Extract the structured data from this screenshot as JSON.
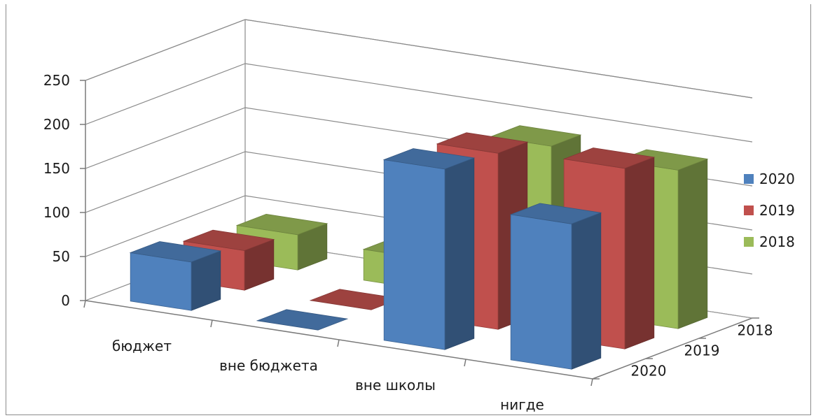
{
  "chart_data": {
    "type": "bar",
    "subtype": "3d-clustered-column",
    "title": "",
    "categories": [
      "бюджет",
      "вне бюджета",
      "вне школы",
      "нигде"
    ],
    "series": [
      {
        "name": "2020",
        "color": "#4f81bd",
        "values": [
          55,
          0,
          205,
          165
        ]
      },
      {
        "name": "2019",
        "color": "#c0504d",
        "values": [
          45,
          0,
          200,
          205
        ]
      },
      {
        "name": "2018",
        "color": "#9bbb59",
        "values": [
          40,
          35,
          185,
          180
        ]
      }
    ],
    "ylim": [
      0,
      250
    ],
    "yticks": [
      "0",
      "50",
      "100",
      "150",
      "200",
      "250"
    ],
    "depth_labels": [
      "2018",
      "2019",
      "2020"
    ],
    "legend": [
      "2020",
      "2019",
      "2018"
    ],
    "legend_position": "right",
    "grid": true
  }
}
